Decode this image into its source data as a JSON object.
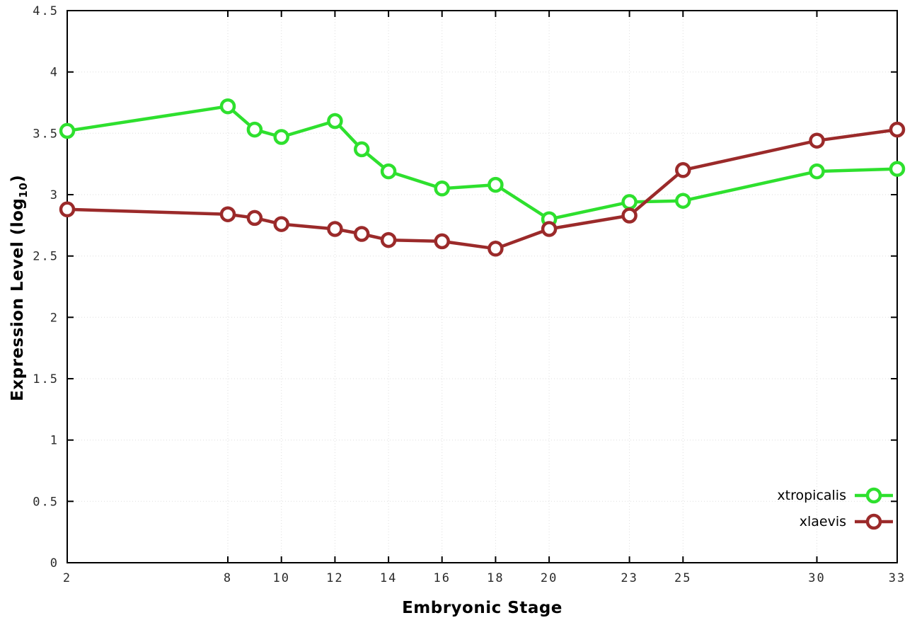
{
  "chart_data": {
    "type": "line",
    "title": "",
    "xlabel": "Embryonic Stage",
    "ylabel": "Expression Level (log10)",
    "ylabel_parts": {
      "prefix": "Expression Level (log",
      "subscript": "10",
      "suffix": ")"
    },
    "xlim": [
      2,
      33
    ],
    "ylim": [
      0,
      4.5
    ],
    "x_ticks": [
      2,
      8,
      10,
      12,
      14,
      16,
      18,
      20,
      23,
      25,
      30,
      33
    ],
    "y_ticks": [
      0,
      0.5,
      1,
      1.5,
      2,
      2.5,
      3,
      3.5,
      4,
      4.5
    ],
    "y_tick_labels": [
      "0",
      "0.5",
      "1",
      "1.5",
      "2",
      "2.5",
      "3",
      "3.5",
      "4",
      "4.5"
    ],
    "grid": true,
    "legend_position": "bottom-right",
    "x": [
      2,
      8,
      9,
      10,
      12,
      13,
      14,
      16,
      18,
      20,
      23,
      25,
      30,
      33
    ],
    "series": [
      {
        "name": "xtropicalis",
        "color": "#2ee02e",
        "values": [
          3.52,
          3.72,
          3.53,
          3.47,
          3.6,
          3.37,
          3.19,
          3.05,
          3.08,
          2.8,
          2.94,
          2.95,
          3.19,
          3.21
        ]
      },
      {
        "name": "xlaevis",
        "color": "#9b2a2a",
        "values": [
          2.88,
          2.84,
          2.81,
          2.76,
          2.72,
          2.68,
          2.63,
          2.62,
          2.56,
          2.72,
          2.83,
          3.2,
          3.44,
          3.53
        ]
      }
    ],
    "styles": {
      "border_color": "#000000",
      "grid_color": "#dedede",
      "tick_label_color": "#2a2a2a",
      "legend_text_color": "#000000"
    }
  }
}
